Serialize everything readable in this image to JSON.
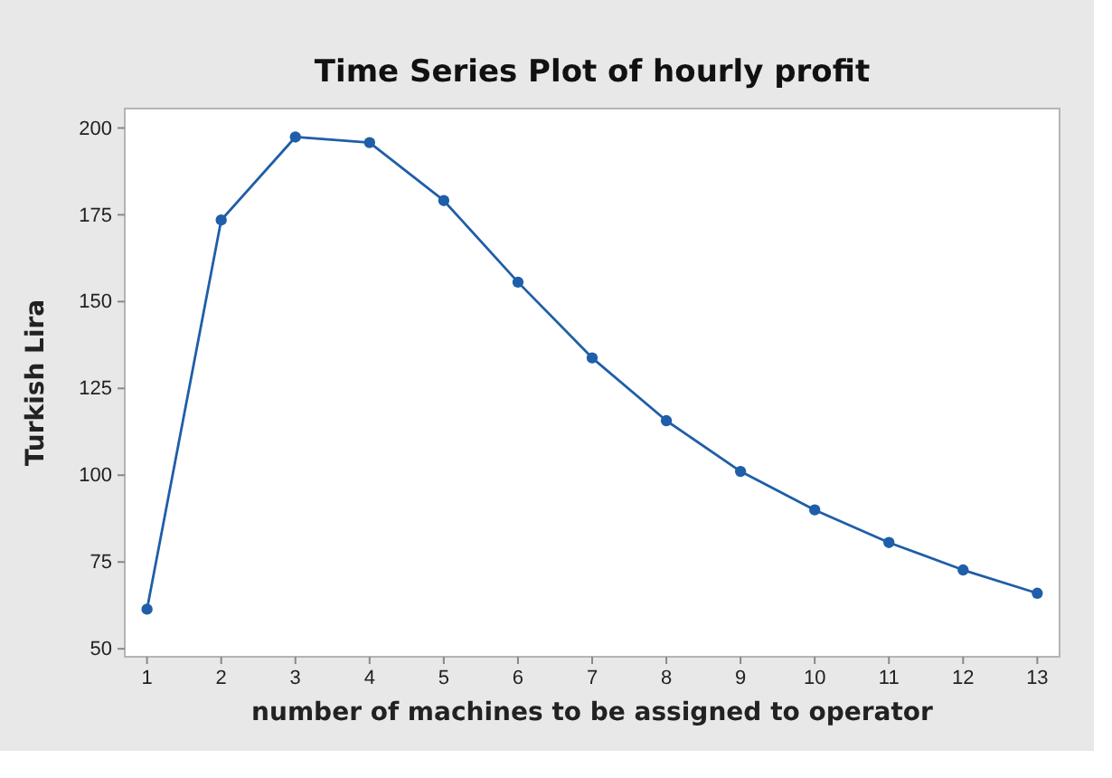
{
  "chart_data": {
    "type": "line",
    "title": "Time Series Plot of hourly profit",
    "xlabel": "number of machines to be assigned to operator",
    "ylabel": "Turkish Lira",
    "x": [
      1,
      2,
      3,
      4,
      5,
      6,
      7,
      8,
      9,
      10,
      11,
      12,
      13
    ],
    "series": [
      {
        "color": "#1f5ea8",
        "values": [
          61.4,
          173.5,
          197.4,
          195.8,
          179.1,
          155.6,
          133.8,
          115.7,
          101.1,
          90.0,
          80.6,
          72.7,
          66.0
        ]
      }
    ],
    "xlim": [
      0.7,
      13.3
    ],
    "xticks": [
      1,
      2,
      3,
      4,
      5,
      6,
      7,
      8,
      9,
      10,
      11,
      12,
      13
    ],
    "ylim": [
      47.7,
      205.6
    ],
    "yticks": [
      50,
      75,
      100,
      125,
      150,
      175,
      200
    ],
    "marker": "circle",
    "line_style": "solid"
  }
}
